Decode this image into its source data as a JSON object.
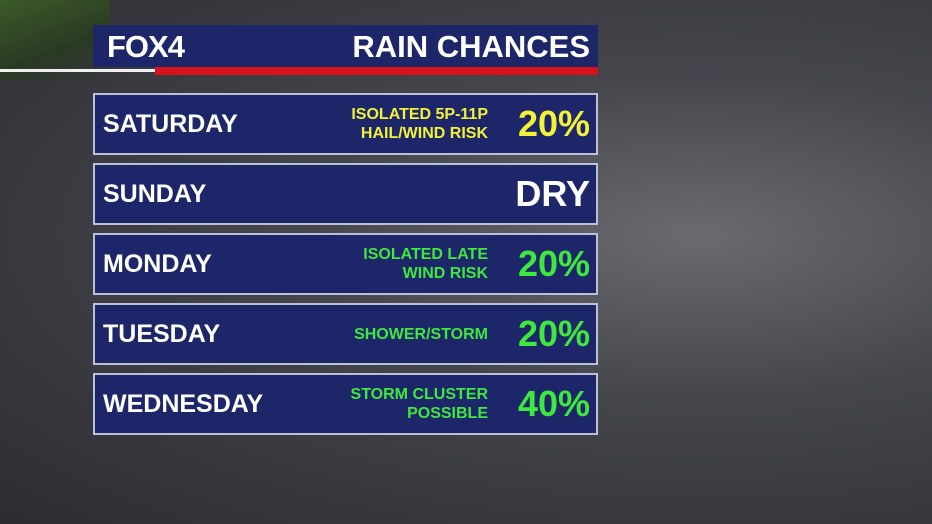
{
  "header": {
    "logo": "FOX4",
    "title": "RAIN CHANCES"
  },
  "rows": [
    {
      "day": "SATURDAY",
      "note": [
        "ISOLATED 5P-11P",
        "HAIL/WIND RISK"
      ],
      "chance": "20%",
      "color": "#f2f23a"
    },
    {
      "day": "SUNDAY",
      "note": [],
      "chance": "DRY",
      "color": "#ffffff"
    },
    {
      "day": "MONDAY",
      "note": [
        "ISOLATED LATE",
        "WIND RISK"
      ],
      "chance": "20%",
      "color": "#3ee83e"
    },
    {
      "day": "TUESDAY",
      "note": [
        "SHOWER/STORM"
      ],
      "chance": "20%",
      "color": "#3ee83e"
    },
    {
      "day": "WEDNESDAY",
      "note": [
        "STORM CLUSTER",
        "POSSIBLE"
      ],
      "chance": "40%",
      "color": "#3ee83e"
    }
  ]
}
